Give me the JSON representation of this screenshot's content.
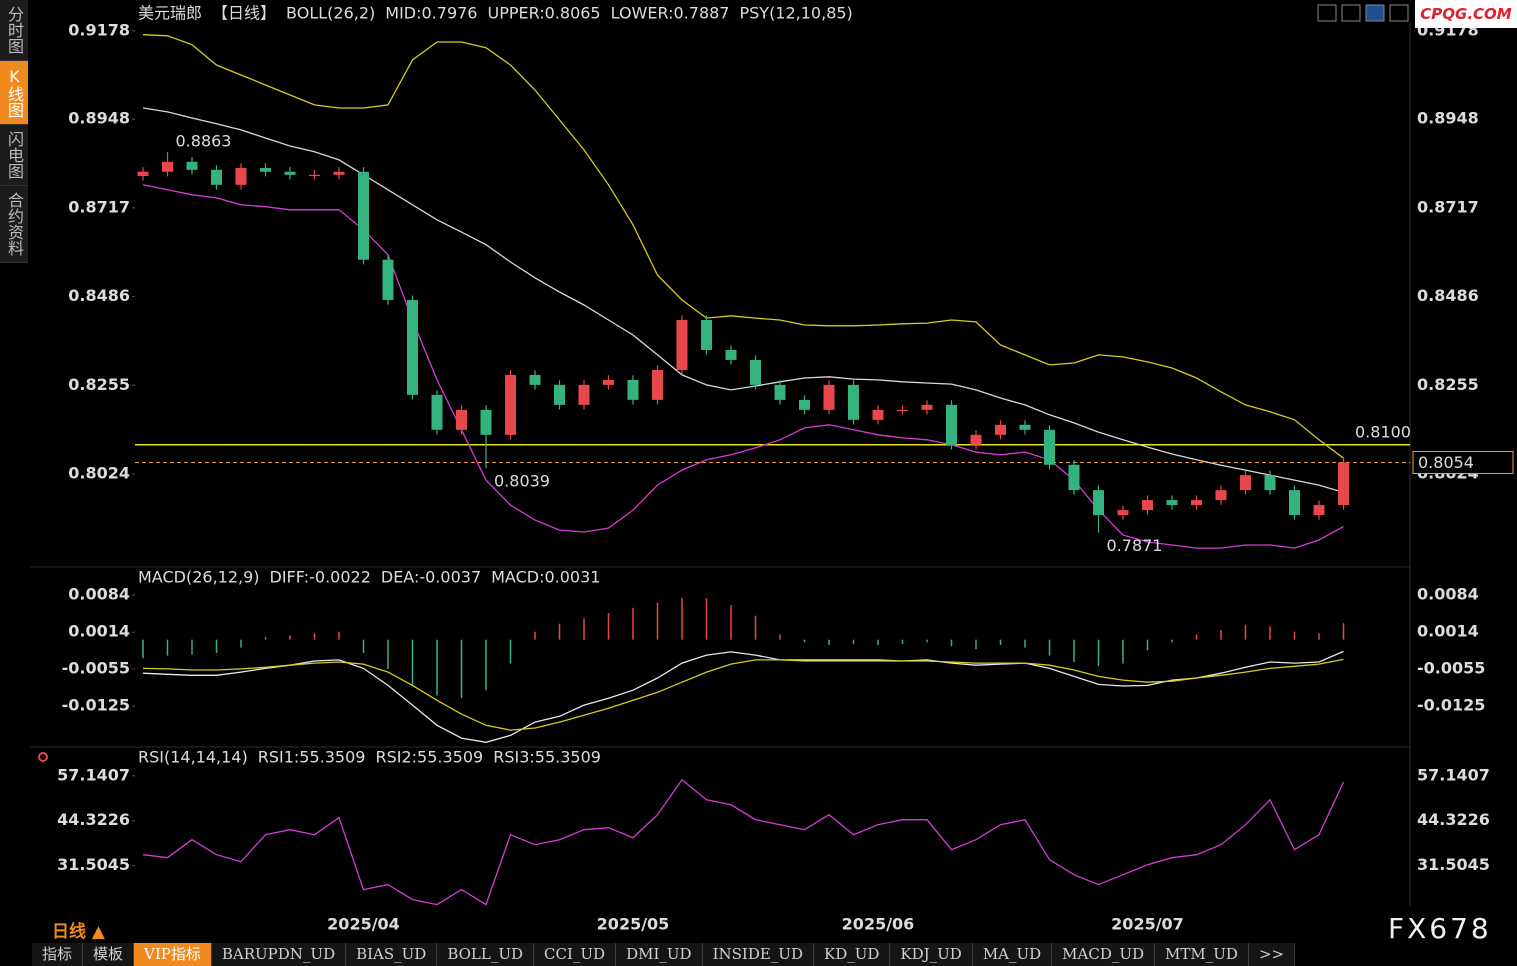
{
  "chart_data": [
    {
      "type": "candlestick",
      "title": "美元瑞郎",
      "period": "【日线】",
      "indicator": "BOLL(26,2)",
      "legend_suffix": "PSY(12,10,85)",
      "categories": [
        null,
        null,
        null,
        null,
        null,
        null,
        null,
        null,
        null,
        "2025/04",
        null,
        null,
        null,
        null,
        null,
        null,
        null,
        null,
        null,
        null,
        "2025/05",
        null,
        null,
        null,
        null,
        null,
        null,
        null,
        null,
        null,
        "2025/06",
        null,
        null,
        null,
        null,
        null,
        null,
        null,
        null,
        null,
        null,
        "2025/07",
        null,
        null,
        null,
        null,
        null,
        null,
        null,
        null
      ],
      "open": [
        0.88,
        0.8811,
        0.8837,
        0.8816,
        0.8777,
        0.8821,
        0.8811,
        0.8803,
        0.8803,
        0.8811,
        0.8582,
        0.8477,
        0.823,
        0.8139,
        0.8191,
        0.8126,
        0.8282,
        0.8256,
        0.8204,
        0.8256,
        0.8269,
        0.8217,
        0.8295,
        0.8425,
        0.8347,
        0.8321,
        0.8256,
        0.8217,
        0.8191,
        0.8256,
        0.8165,
        0.8191,
        0.8191,
        0.8204,
        0.81,
        0.8126,
        0.8152,
        0.8139,
        0.8048,
        0.7982,
        0.7917,
        0.793,
        0.7956,
        0.7943,
        0.7956,
        0.7982,
        0.8021,
        0.7982,
        0.7917,
        0.7943
      ],
      "high": [
        0.8823,
        0.8863,
        0.8849,
        0.8828,
        0.8833,
        0.8833,
        0.8823,
        0.8815,
        0.8823,
        0.8823,
        0.8594,
        0.8489,
        0.8242,
        0.8203,
        0.8203,
        0.8294,
        0.8294,
        0.8268,
        0.8268,
        0.8281,
        0.8281,
        0.8307,
        0.8437,
        0.8437,
        0.8359,
        0.8333,
        0.8268,
        0.8229,
        0.8268,
        0.8268,
        0.8203,
        0.8203,
        0.8216,
        0.8216,
        0.8138,
        0.8164,
        0.8164,
        0.8151,
        0.806,
        0.7994,
        0.7942,
        0.7968,
        0.7968,
        0.7968,
        0.7994,
        0.8033,
        0.8033,
        0.7994,
        0.7955,
        0.8066
      ],
      "low": [
        0.8788,
        0.8799,
        0.8804,
        0.8765,
        0.8765,
        0.8799,
        0.8791,
        0.8791,
        0.8791,
        0.857,
        0.8465,
        0.8218,
        0.8127,
        0.8127,
        0.8039,
        0.8114,
        0.8244,
        0.8192,
        0.8192,
        0.8244,
        0.8205,
        0.8205,
        0.8283,
        0.8335,
        0.8309,
        0.8244,
        0.8205,
        0.8179,
        0.8179,
        0.8153,
        0.8153,
        0.8179,
        0.8179,
        0.8088,
        0.8088,
        0.8114,
        0.8127,
        0.8036,
        0.797,
        0.7871,
        0.7905,
        0.7918,
        0.7931,
        0.7931,
        0.7944,
        0.797,
        0.797,
        0.7905,
        0.7905,
        0.7931
      ],
      "close": [
        0.8811,
        0.8837,
        0.8816,
        0.8777,
        0.8821,
        0.8811,
        0.8803,
        0.8803,
        0.8811,
        0.8582,
        0.8477,
        0.823,
        0.8139,
        0.8191,
        0.8126,
        0.8282,
        0.8256,
        0.8204,
        0.8256,
        0.8269,
        0.8217,
        0.8295,
        0.8425,
        0.8347,
        0.8321,
        0.8256,
        0.8217,
        0.8191,
        0.8256,
        0.8165,
        0.8191,
        0.8191,
        0.8204,
        0.81,
        0.8126,
        0.8152,
        0.8139,
        0.8048,
        0.7982,
        0.7917,
        0.793,
        0.7956,
        0.7943,
        0.7956,
        0.7982,
        0.8021,
        0.7982,
        0.7917,
        0.7943,
        0.8054
      ],
      "up_color": "#e8474b",
      "down_color": "#35b37e",
      "series": [
        {
          "name": "MID:0.7976",
          "color": "#d8d8d8",
          "values": [
            0.8977,
            0.8967,
            0.8951,
            0.8936,
            0.892,
            0.8899,
            0.8878,
            0.8863,
            0.8842,
            0.8803,
            0.8764,
            0.8725,
            0.8686,
            0.8654,
            0.8621,
            0.8576,
            0.8535,
            0.8498,
            0.8464,
            0.8425,
            0.8386,
            0.8334,
            0.8282,
            0.8256,
            0.8243,
            0.8253,
            0.8264,
            0.8274,
            0.8277,
            0.8271,
            0.8269,
            0.8264,
            0.8261,
            0.8258,
            0.8243,
            0.8222,
            0.8204,
            0.8178,
            0.8157,
            0.8133,
            0.8113,
            0.8094,
            0.8076,
            0.8061,
            0.8047,
            0.8034,
            0.8021,
            0.8008,
            0.7995,
            0.7976
          ]
        },
        {
          "name": "UPPER:0.8065",
          "color": "#d4cc1e",
          "values": [
            0.9168,
            0.9165,
            0.9142,
            0.9089,
            0.9063,
            0.9037,
            0.9011,
            0.8985,
            0.8977,
            0.8977,
            0.8985,
            0.9102,
            0.9149,
            0.9149,
            0.9134,
            0.9089,
            0.9024,
            0.8946,
            0.8868,
            0.8777,
            0.8673,
            0.8542,
            0.8477,
            0.843,
            0.8436,
            0.843,
            0.8425,
            0.8412,
            0.841,
            0.841,
            0.8412,
            0.8415,
            0.8417,
            0.8425,
            0.842,
            0.836,
            0.8334,
            0.8308,
            0.8313,
            0.8334,
            0.8329,
            0.8316,
            0.83,
            0.8274,
            0.8238,
            0.8204,
            0.8186,
            0.8165,
            0.8113,
            0.8065
          ]
        },
        {
          "name": "LOWER:0.7887",
          "color": "#d63bd6",
          "values": [
            0.8777,
            0.8764,
            0.8751,
            0.8743,
            0.8725,
            0.872,
            0.8712,
            0.8712,
            0.8712,
            0.866,
            0.8595,
            0.8425,
            0.8269,
            0.8139,
            0.8008,
            0.7943,
            0.7904,
            0.7878,
            0.7873,
            0.7883,
            0.793,
            0.7995,
            0.8034,
            0.8061,
            0.8074,
            0.8092,
            0.8113,
            0.8144,
            0.8152,
            0.8139,
            0.8126,
            0.8118,
            0.8113,
            0.81,
            0.8081,
            0.8074,
            0.8081,
            0.8061,
            0.8008,
            0.793,
            0.7865,
            0.7847,
            0.7839,
            0.7831,
            0.7831,
            0.7839,
            0.7839,
            0.7831,
            0.7852,
            0.7887
          ]
        }
      ],
      "hline": {
        "value": 0.81,
        "label": "0.8100",
        "color": "#e6e61a"
      },
      "last_price": 0.8054,
      "last_price_color": "#f0a030",
      "annotations": [
        {
          "value": 0.8863,
          "index": 1,
          "color": "#e8474b",
          "position": "above"
        },
        {
          "value": 0.8039,
          "index": 14,
          "color": "#35b37e",
          "position": "below"
        },
        {
          "value": 0.7871,
          "index": 39,
          "color": "#35b37e",
          "position": "below"
        }
      ],
      "ylim": [
        0.7787,
        0.9201
      ],
      "yticks": [
        0.9178,
        0.8948,
        0.8717,
        0.8486,
        0.8255,
        0.8024
      ],
      "grid": false
    },
    {
      "type": "macd",
      "title": "MACD(26,12,9)",
      "series": [
        {
          "name": "DIFF:-0.0022",
          "color": "#e8e8e8",
          "values": [
            -0.0063,
            -0.0065,
            -0.0067,
            -0.0067,
            -0.0061,
            -0.0054,
            -0.0048,
            -0.004,
            -0.0038,
            -0.0054,
            -0.0086,
            -0.0123,
            -0.0161,
            -0.0185,
            -0.0193,
            -0.018,
            -0.0155,
            -0.0144,
            -0.0123,
            -0.011,
            -0.0095,
            -0.0072,
            -0.0044,
            -0.0029,
            -0.0023,
            -0.0029,
            -0.0038,
            -0.0038,
            -0.0038,
            -0.0038,
            -0.0038,
            -0.004,
            -0.0038,
            -0.0044,
            -0.0048,
            -0.0046,
            -0.0044,
            -0.0054,
            -0.0069,
            -0.0084,
            -0.0087,
            -0.0086,
            -0.0076,
            -0.0072,
            -0.0063,
            -0.0052,
            -0.0042,
            -0.0044,
            -0.0042,
            -0.0022
          ]
        },
        {
          "name": "DEA:-0.0037",
          "color": "#d4cc1e",
          "values": [
            -0.0054,
            -0.0055,
            -0.0057,
            -0.0057,
            -0.0055,
            -0.0052,
            -0.0048,
            -0.0044,
            -0.0042,
            -0.0046,
            -0.0061,
            -0.0086,
            -0.0114,
            -0.014,
            -0.0161,
            -0.017,
            -0.0166,
            -0.0155,
            -0.0142,
            -0.0129,
            -0.0114,
            -0.0099,
            -0.008,
            -0.0061,
            -0.0046,
            -0.0038,
            -0.0038,
            -0.004,
            -0.004,
            -0.004,
            -0.004,
            -0.004,
            -0.004,
            -0.0042,
            -0.0044,
            -0.0044,
            -0.0044,
            -0.0048,
            -0.0057,
            -0.0069,
            -0.0076,
            -0.008,
            -0.0078,
            -0.0072,
            -0.0067,
            -0.0061,
            -0.0054,
            -0.005,
            -0.0046,
            -0.0037
          ]
        },
        {
          "name": "MACD:0.0031",
          "color": "#d63bd6",
          "kind": "histogram",
          "up_color": "#e8474b",
          "down_color": "#35b37e",
          "values": [
            -0.0035,
            -0.003,
            -0.0028,
            -0.0025,
            -0.0015,
            0.0005,
            0.0008,
            0.0012,
            0.0015,
            -0.0025,
            -0.0055,
            -0.0085,
            -0.0105,
            -0.011,
            -0.0095,
            -0.0045,
            0.0015,
            0.003,
            0.004,
            0.005,
            0.006,
            0.007,
            0.0078,
            0.0078,
            0.0065,
            0.0045,
            0.001,
            -0.0005,
            -0.001,
            -0.0008,
            -0.001,
            -0.0008,
            -0.0005,
            -0.0012,
            -0.0018,
            -0.001,
            -0.0015,
            -0.003,
            -0.0042,
            -0.005,
            -0.0045,
            -0.002,
            -0.0005,
            0.001,
            0.0018,
            0.0028,
            0.0025,
            0.0015,
            0.0012,
            0.0031
          ]
        }
      ],
      "ylim": [
        -0.0198,
        0.0131
      ],
      "yticks": [
        0.0084,
        0.0014,
        -0.0055,
        -0.0125
      ],
      "grid": false
    },
    {
      "type": "line",
      "title": "RSI(14,14,14)",
      "legend_prefix": [
        {
          "text": "RSI1:55.3509",
          "color": "#e8e8e8"
        },
        {
          "text": "RSI2:55.3509",
          "color": "#d4cc1e"
        }
      ],
      "series": [
        {
          "name": "RSI3:55.3509",
          "color": "#d63bd6",
          "values": [
            34.64,
            33.79,
            38.91,
            34.64,
            32.65,
            40.34,
            41.76,
            40.34,
            45.18,
            24.67,
            26.1,
            21.82,
            20.4,
            24.67,
            20.4,
            40.34,
            37.49,
            38.91,
            41.76,
            42.33,
            39.48,
            46.03,
            56.0,
            50.3,
            48.88,
            44.61,
            43.18,
            41.76,
            46.03,
            40.34,
            43.18,
            44.61,
            44.61,
            36.06,
            38.91,
            43.18,
            44.61,
            33.22,
            28.94,
            26.1,
            28.94,
            31.79,
            33.79,
            34.64,
            37.49,
            43.18,
            50.3,
            36.06,
            40.34,
            55.3509
          ]
        }
      ],
      "ylim": [
        20,
        64.5
      ],
      "yticks": [
        57.1407,
        44.3226,
        31.5045
      ],
      "grid": false
    }
  ],
  "ui": {
    "left_tabs": [
      "分时图",
      "K线图",
      "闪电图",
      "合约资料"
    ],
    "active_left_tab": 1,
    "bottom_tabs": [
      "指标",
      "模板",
      "VIP指标",
      "BARUPDN_UD",
      "BIAS_UD",
      "BOLL_UD",
      "CCI_UD",
      "DMI_UD",
      "INSIDE_UD",
      "KD_UD",
      "KDJ_UD",
      "MA_UD",
      "MACD_UD",
      "MTM_UD",
      ">>"
    ],
    "active_bottom_tab": 2,
    "period_label": "日线 ▲",
    "watermark": "FX678",
    "site": "CPQG.COM"
  }
}
